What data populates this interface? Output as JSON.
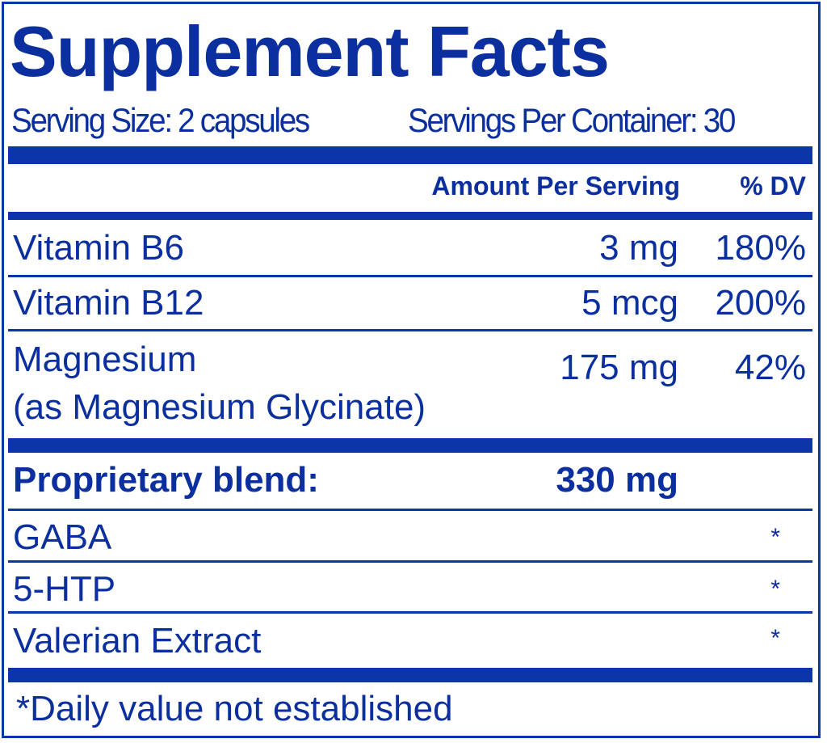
{
  "title": "Supplement Facts",
  "serving_size": "Serving Size: 2 capsules",
  "servings_per_container": "Servings Per Container: 30",
  "header": {
    "amount": "Amount Per Serving",
    "dv": "% DV"
  },
  "nutrients": [
    {
      "name": "Vitamin B6",
      "amount": "3 mg",
      "dv": "180%"
    },
    {
      "name": "Vitamin B12",
      "amount": "5 mcg",
      "dv": "200%"
    },
    {
      "name": "Magnesium",
      "sub": "(as Magnesium Glycinate)",
      "amount": "175 mg",
      "dv": "42%"
    }
  ],
  "blend": {
    "name": "Proprietary blend:",
    "amount": "330 mg"
  },
  "blend_items": [
    {
      "name": "GABA",
      "dv": "*"
    },
    {
      "name": "5-HTP",
      "dv": "*"
    },
    {
      "name": "Valerian Extract",
      "dv": "*"
    }
  ],
  "footnote": "*Daily value not established",
  "colors": {
    "primary": "#0b35a8",
    "text": "#0b2f9e"
  }
}
